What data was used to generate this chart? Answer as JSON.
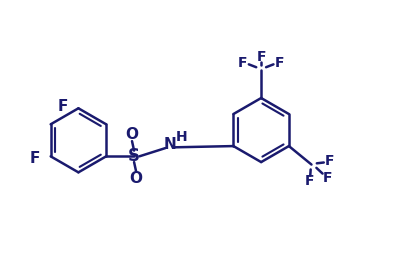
{
  "line_color": "#1a1a6e",
  "bg_color": "#ffffff",
  "bond_width": 1.8,
  "font_size_label": 11,
  "font_size_small": 10,
  "fig_w": 3.95,
  "fig_h": 2.56,
  "dpi": 100,
  "xlim": [
    0,
    9.5
  ],
  "ylim": [
    0,
    6.2
  ]
}
